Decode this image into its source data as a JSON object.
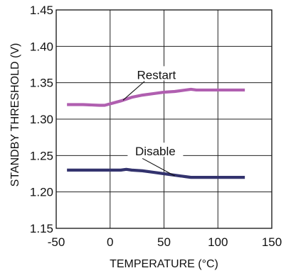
{
  "chart_data": {
    "type": "line",
    "title": "",
    "xlabel": "TEMPERATURE (°C)",
    "ylabel": "STANDBY THRESHOLD (V)",
    "xlim": [
      -50,
      150
    ],
    "ylim": [
      1.15,
      1.45
    ],
    "x_ticks": [
      -50,
      0,
      50,
      100,
      150
    ],
    "x_tick_labels": [
      "-50",
      "0",
      "50",
      "100",
      "150"
    ],
    "y_ticks": [
      1.15,
      1.2,
      1.25,
      1.3,
      1.35,
      1.4,
      1.45
    ],
    "y_tick_labels": [
      "1.15",
      "1.20",
      "1.25",
      "1.30",
      "1.35",
      "1.40",
      "1.45"
    ],
    "grid": true,
    "legend": "none",
    "series": [
      {
        "name": "Restart",
        "color": "#b05fb0",
        "x": [
          -40,
          -25,
          -10,
          -5,
          0,
          10,
          20,
          30,
          40,
          50,
          60,
          70,
          75,
          80,
          90,
          100,
          110,
          125
        ],
        "y": [
          1.32,
          1.32,
          1.319,
          1.319,
          1.321,
          1.325,
          1.33,
          1.333,
          1.335,
          1.337,
          1.338,
          1.34,
          1.341,
          1.34,
          1.34,
          1.34,
          1.34,
          1.34
        ]
      },
      {
        "name": "Disable",
        "color": "#33336e",
        "x": [
          -40,
          -20,
          0,
          10,
          15,
          20,
          30,
          40,
          50,
          60,
          70,
          75,
          80,
          90,
          100,
          110,
          125
        ],
        "y": [
          1.23,
          1.23,
          1.23,
          1.23,
          1.231,
          1.23,
          1.229,
          1.227,
          1.225,
          1.223,
          1.221,
          1.22,
          1.22,
          1.22,
          1.22,
          1.22,
          1.22
        ]
      }
    ],
    "annotations": [
      {
        "text": "Restart",
        "series": 0,
        "label_x": 43,
        "label_y": 1.361,
        "leader_from": [
          32,
          1.352
        ],
        "leader_to": [
          12,
          1.326
        ]
      },
      {
        "text": "Disable",
        "series": 1,
        "label_x": 42,
        "label_y": 1.256,
        "leader_from": [
          30,
          1.246
        ],
        "leader_to": [
          60,
          1.222
        ]
      }
    ]
  }
}
